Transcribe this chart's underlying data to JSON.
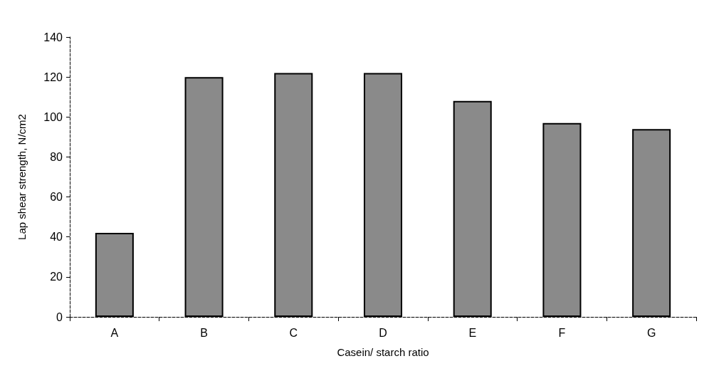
{
  "chart_data": {
    "type": "bar",
    "xlabel": "Casein/ starch ratio",
    "ylabel": "Lap shear strength, N/cm2",
    "categories": [
      "A",
      "B",
      "C",
      "D",
      "E",
      "F",
      "G"
    ],
    "values": [
      42,
      120,
      122,
      122,
      108,
      97,
      94
    ],
    "color": "#8a8a8a",
    "ylim": [
      0,
      140
    ],
    "yticks": [
      0,
      20,
      40,
      60,
      80,
      100,
      120,
      140
    ],
    "grid": false
  }
}
